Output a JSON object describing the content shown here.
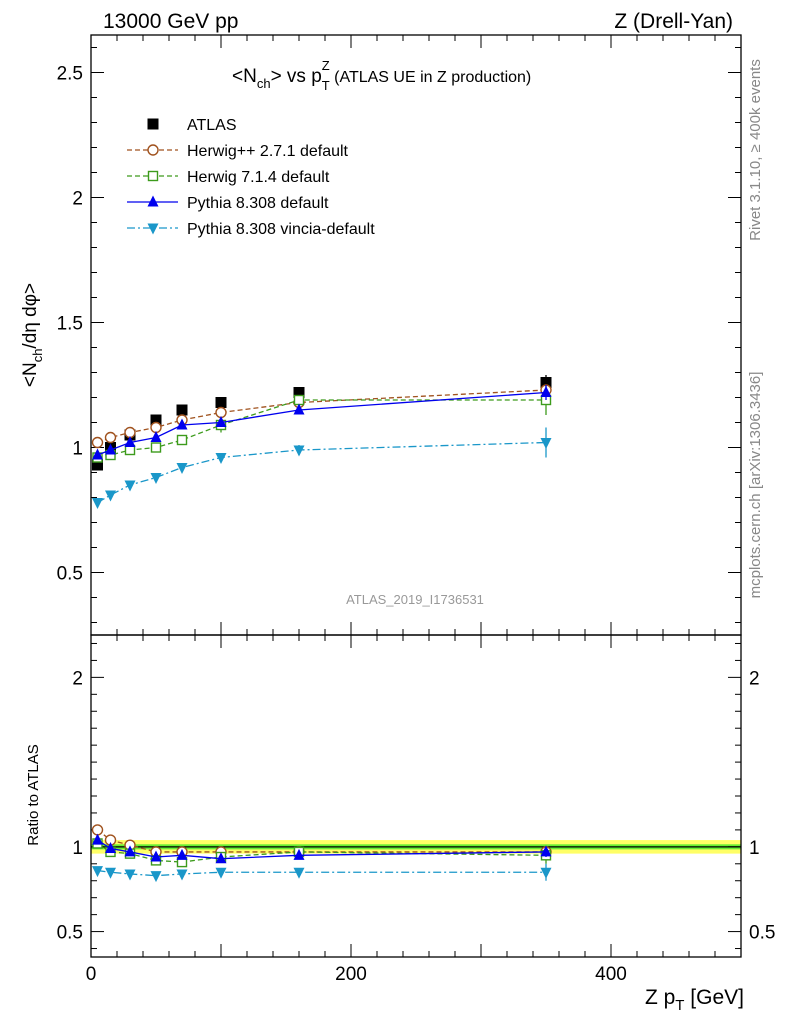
{
  "header": {
    "left": "13000 GeV pp",
    "right": "Z (Drell-Yan)"
  },
  "side_labels": {
    "rivet": "Rivet 3.1.10, ≥ 400k events",
    "mcplots": "mcplots.cern.ch [arXiv:1306.3436]"
  },
  "watermark": "ATLAS_2019_I1736531",
  "chart_data": [
    {
      "type": "scatter",
      "title": "<Nch> vs pTZ (ATLAS UE in Z production)",
      "title_parts": {
        "main": "<N",
        "ch": "ch",
        "mid": "> vs p",
        "sup": "Z",
        "sub": "T",
        "rest": " (ATLAS UE in Z production)"
      },
      "ylabel": "<Nch/dη dφ>",
      "ylabel_parts": {
        "a": "<N",
        "sub": "ch",
        "b": "/dη dφ>"
      },
      "xlabel": "Z pT [GeV]",
      "xlim": [
        0,
        500
      ],
      "ylim": [
        0.25,
        2.65
      ],
      "yticks": [
        0.5,
        1,
        1.5,
        2,
        2.5
      ],
      "ytick_labels": [
        "0.5",
        "1",
        "1.5",
        "2",
        "2.5"
      ],
      "x": [
        5,
        15,
        30,
        50,
        70,
        100,
        160,
        350
      ],
      "legend": {
        "position": "top-left"
      },
      "series": [
        {
          "name": "ATLAS",
          "marker": "filled-square",
          "color": "#000000",
          "line": "none",
          "values": [
            0.93,
            1.0,
            1.05,
            1.11,
            1.15,
            1.18,
            1.22,
            1.26
          ],
          "errors": [
            0.02,
            0.02,
            0.02,
            0.02,
            0.02,
            0.02,
            0.02,
            0.03
          ]
        },
        {
          "name": "Herwig++ 2.7.1 default",
          "marker": "open-circle",
          "color": "#a0521e",
          "line": "dashed",
          "values": [
            1.02,
            1.04,
            1.06,
            1.08,
            1.11,
            1.14,
            1.18,
            1.23
          ],
          "errors": [
            0.01,
            0.01,
            0.01,
            0.01,
            0.01,
            0.01,
            0.01,
            0.02
          ]
        },
        {
          "name": "Herwig 7.1.4 default",
          "marker": "open-square",
          "color": "#3d9b1c",
          "line": "dashed",
          "values": [
            0.96,
            0.97,
            0.99,
            1.0,
            1.03,
            1.09,
            1.19,
            1.19
          ],
          "errors": [
            0.01,
            0.01,
            0.01,
            0.01,
            0.01,
            0.03,
            0.02,
            0.06
          ]
        },
        {
          "name": "Pythia 8.308 default",
          "marker": "filled-triangle-up",
          "color": "#0000ee",
          "line": "solid",
          "values": [
            0.97,
            0.99,
            1.02,
            1.04,
            1.09,
            1.1,
            1.15,
            1.22
          ],
          "errors": [
            0.01,
            0.01,
            0.01,
            0.01,
            0.01,
            0.01,
            0.01,
            0.03
          ]
        },
        {
          "name": "Pythia 8.308 vincia-default",
          "marker": "filled-triangle-down",
          "color": "#1a97c9",
          "line": "dashdot",
          "values": [
            0.78,
            0.81,
            0.85,
            0.88,
            0.92,
            0.96,
            0.99,
            1.02
          ],
          "errors": [
            0.01,
            0.01,
            0.01,
            0.01,
            0.01,
            0.01,
            0.02,
            0.06
          ]
        }
      ]
    },
    {
      "type": "scatter",
      "ylabel": "Ratio to ATLAS",
      "xlabel": "Z pT [GeV]",
      "xlabel_parts": {
        "a": "Z p",
        "sub": "T",
        "b": " [GeV]"
      },
      "xlim": [
        0,
        500
      ],
      "ylim": [
        0.35,
        2.25
      ],
      "yticks": [
        0.5,
        1,
        2
      ],
      "ytick_labels": [
        "0.5",
        "1",
        "2"
      ],
      "xticks": [
        0,
        200,
        400
      ],
      "xtick_labels": [
        "0",
        "200",
        "400"
      ],
      "x": [
        5,
        15,
        30,
        50,
        70,
        100,
        160,
        350
      ],
      "band": {
        "inner": [
          0.985,
          1.015
        ],
        "outer": [
          0.96,
          1.04
        ],
        "inner_color": "#66ee33",
        "outer_color": "#ffff66"
      },
      "series": [
        {
          "name": "Herwig++ 2.7.1 default",
          "marker": "open-circle",
          "color": "#a0521e",
          "line": "dashed",
          "values": [
            1.1,
            1.04,
            1.01,
            0.97,
            0.97,
            0.97,
            0.97,
            0.97
          ],
          "errors": [
            0.01,
            0.01,
            0.01,
            0.01,
            0.01,
            0.01,
            0.01,
            0.02
          ]
        },
        {
          "name": "Herwig 7.1.4 default",
          "marker": "open-square",
          "color": "#3d9b1c",
          "line": "dashed",
          "values": [
            1.02,
            0.97,
            0.96,
            0.92,
            0.91,
            0.94,
            0.97,
            0.95
          ],
          "errors": [
            0.01,
            0.01,
            0.01,
            0.01,
            0.01,
            0.02,
            0.02,
            0.05
          ]
        },
        {
          "name": "Pythia 8.308 default",
          "marker": "filled-triangle-up",
          "color": "#0000ee",
          "line": "solid",
          "values": [
            1.04,
            0.99,
            0.97,
            0.94,
            0.95,
            0.93,
            0.95,
            0.97
          ],
          "errors": [
            0.01,
            0.01,
            0.01,
            0.01,
            0.01,
            0.01,
            0.01,
            0.03
          ]
        },
        {
          "name": "Pythia 8.308 vincia-default",
          "marker": "filled-triangle-down",
          "color": "#1a97c9",
          "line": "dashdot",
          "values": [
            0.86,
            0.85,
            0.84,
            0.83,
            0.84,
            0.85,
            0.85,
            0.85
          ],
          "errors": [
            0.01,
            0.01,
            0.01,
            0.01,
            0.01,
            0.01,
            0.02,
            0.05
          ]
        }
      ]
    }
  ]
}
